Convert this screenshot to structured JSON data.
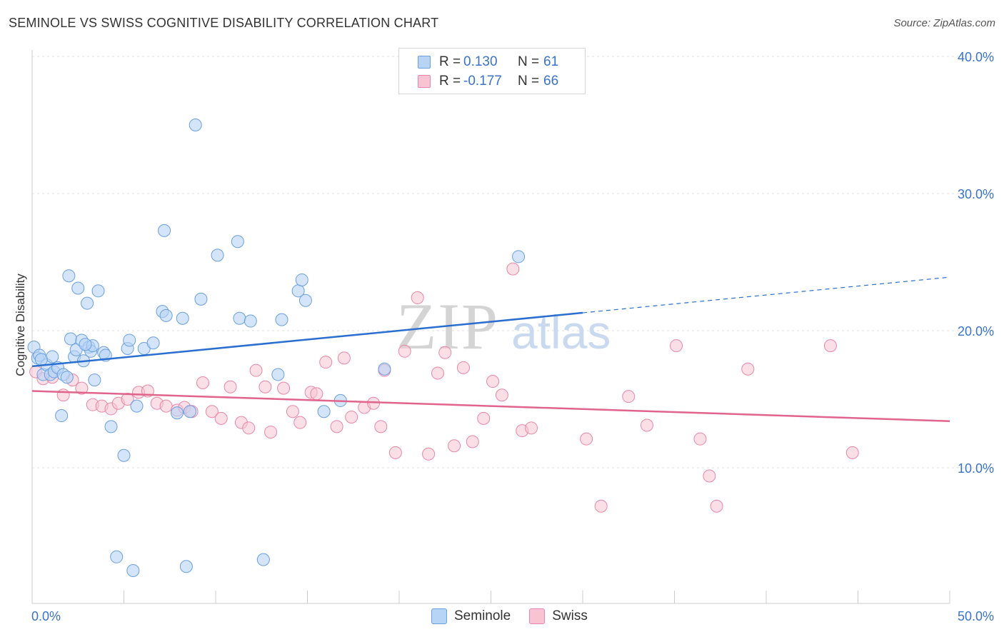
{
  "header": {
    "title": "SEMINOLE VS SWISS COGNITIVE DISABILITY CORRELATION CHART",
    "source": "Source: ZipAtlas.com"
  },
  "legend": {
    "seminole": {
      "r_label": "R =",
      "r_value": "0.130",
      "n_label": "N =",
      "n_value": "61"
    },
    "swiss": {
      "r_label": "R =",
      "r_value": "-0.177",
      "n_label": "N =",
      "n_value": "66"
    }
  },
  "bottom_legend": {
    "seminole": "Seminole",
    "swiss": "Swiss"
  },
  "watermark": {
    "zip": "ZIP",
    "atlas": "atlas"
  },
  "colors": {
    "seminole_fill": "#b8d4f5",
    "seminole_stroke": "#6a9fe0",
    "seminole_line": "#2a6fd0",
    "swiss_fill": "#f8c4d4",
    "swiss_stroke": "#e887a8",
    "swiss_line": "#e0648c",
    "axis_text": "#3a73c9",
    "grid": "#dddddd"
  },
  "chart_data": {
    "type": "scatter",
    "title": "SEMINOLE VS SWISS COGNITIVE DISABILITY CORRELATION CHART",
    "xlabel": "",
    "ylabel": "Cognitive Disability",
    "xlim": [
      0,
      50
    ],
    "ylim": [
      0,
      41
    ],
    "x_tick_labels": [
      "0.0%",
      "50.0%"
    ],
    "y_ticks": [
      10,
      20,
      30,
      40
    ],
    "y_tick_labels": [
      "10.0%",
      "20.0%",
      "30.0%",
      "40.0%"
    ],
    "grid": true,
    "legend_position": "top-center",
    "series": [
      {
        "name": "Seminole",
        "r": 0.13,
        "n": 61,
        "trend": {
          "x0": 0,
          "y0": 17.4,
          "x1": 30,
          "y1": 21.3,
          "dashed_to_x": 50,
          "dashed_to_y": 23.9
        },
        "points": [
          [
            0.1,
            18.8
          ],
          [
            0.3,
            18.0
          ],
          [
            0.4,
            18.2
          ],
          [
            0.6,
            16.8
          ],
          [
            0.8,
            17.5
          ],
          [
            1.0,
            16.8
          ],
          [
            1.2,
            17.0
          ],
          [
            1.4,
            17.3
          ],
          [
            1.7,
            16.8
          ],
          [
            1.9,
            16.6
          ],
          [
            1.6,
            13.8
          ],
          [
            2.0,
            24.0
          ],
          [
            2.1,
            19.4
          ],
          [
            2.3,
            18.1
          ],
          [
            2.4,
            18.6
          ],
          [
            2.5,
            23.1
          ],
          [
            2.7,
            19.3
          ],
          [
            2.8,
            17.8
          ],
          [
            3.0,
            22.0
          ],
          [
            3.1,
            18.8
          ],
          [
            3.2,
            18.5
          ],
          [
            3.3,
            18.9
          ],
          [
            3.4,
            16.4
          ],
          [
            3.6,
            22.9
          ],
          [
            3.9,
            18.4
          ],
          [
            4.0,
            18.2
          ],
          [
            4.3,
            13.0
          ],
          [
            4.6,
            3.5
          ],
          [
            5.0,
            10.9
          ],
          [
            5.2,
            18.7
          ],
          [
            5.3,
            19.3
          ],
          [
            5.5,
            2.5
          ],
          [
            5.7,
            14.5
          ],
          [
            6.1,
            18.7
          ],
          [
            6.6,
            19.1
          ],
          [
            7.1,
            21.4
          ],
          [
            7.2,
            27.3
          ],
          [
            7.3,
            21.1
          ],
          [
            7.9,
            14.0
          ],
          [
            8.2,
            20.9
          ],
          [
            8.4,
            2.8
          ],
          [
            8.6,
            14.1
          ],
          [
            8.9,
            35.0
          ],
          [
            9.2,
            22.3
          ],
          [
            10.1,
            25.5
          ],
          [
            11.2,
            26.5
          ],
          [
            11.3,
            20.9
          ],
          [
            11.9,
            20.7
          ],
          [
            12.6,
            3.3
          ],
          [
            13.4,
            16.8
          ],
          [
            13.6,
            20.8
          ],
          [
            14.5,
            22.9
          ],
          [
            14.7,
            23.7
          ],
          [
            14.9,
            22.2
          ],
          [
            15.9,
            14.1
          ],
          [
            16.8,
            14.9
          ],
          [
            19.2,
            17.2
          ],
          [
            26.5,
            25.4
          ],
          [
            1.1,
            18.1
          ],
          [
            0.5,
            17.9
          ],
          [
            2.9,
            19.0
          ]
        ]
      },
      {
        "name": "Swiss",
        "r": -0.177,
        "n": 66,
        "trend": {
          "x0": 0,
          "y0": 15.6,
          "x1": 50,
          "y1": 13.4
        },
        "points": [
          [
            0.2,
            17.0
          ],
          [
            0.6,
            16.5
          ],
          [
            1.1,
            16.6
          ],
          [
            1.7,
            15.3
          ],
          [
            2.2,
            16.4
          ],
          [
            2.7,
            15.8
          ],
          [
            3.3,
            14.6
          ],
          [
            3.8,
            14.5
          ],
          [
            4.3,
            14.3
          ],
          [
            4.7,
            14.7
          ],
          [
            5.2,
            15.0
          ],
          [
            5.8,
            15.5
          ],
          [
            6.3,
            15.6
          ],
          [
            6.8,
            14.7
          ],
          [
            7.3,
            14.5
          ],
          [
            7.9,
            14.2
          ],
          [
            8.3,
            14.4
          ],
          [
            8.7,
            14.1
          ],
          [
            9.3,
            16.2
          ],
          [
            9.8,
            14.1
          ],
          [
            10.3,
            13.6
          ],
          [
            10.8,
            15.9
          ],
          [
            11.4,
            13.3
          ],
          [
            11.8,
            12.9
          ],
          [
            12.2,
            17.1
          ],
          [
            12.7,
            15.9
          ],
          [
            13.0,
            12.6
          ],
          [
            13.7,
            15.8
          ],
          [
            14.2,
            14.1
          ],
          [
            14.6,
            13.3
          ],
          [
            15.2,
            15.5
          ],
          [
            15.5,
            15.4
          ],
          [
            16.0,
            17.7
          ],
          [
            16.6,
            13.0
          ],
          [
            17.0,
            18.0
          ],
          [
            17.4,
            13.7
          ],
          [
            18.1,
            14.4
          ],
          [
            18.6,
            14.7
          ],
          [
            19.0,
            13.0
          ],
          [
            19.2,
            17.1
          ],
          [
            19.8,
            11.1
          ],
          [
            20.3,
            18.5
          ],
          [
            21.0,
            22.4
          ],
          [
            21.6,
            11.0
          ],
          [
            22.1,
            16.9
          ],
          [
            22.5,
            18.4
          ],
          [
            23.0,
            11.6
          ],
          [
            23.5,
            17.3
          ],
          [
            24.0,
            11.9
          ],
          [
            24.6,
            13.6
          ],
          [
            25.1,
            16.3
          ],
          [
            25.6,
            15.3
          ],
          [
            26.2,
            24.5
          ],
          [
            26.7,
            12.7
          ],
          [
            27.2,
            12.9
          ],
          [
            30.2,
            12.1
          ],
          [
            31.0,
            7.2
          ],
          [
            32.5,
            15.2
          ],
          [
            33.5,
            13.1
          ],
          [
            35.1,
            18.9
          ],
          [
            36.4,
            12.1
          ],
          [
            36.9,
            9.4
          ],
          [
            37.3,
            7.2
          ],
          [
            39.0,
            17.2
          ],
          [
            43.5,
            18.9
          ],
          [
            44.7,
            11.1
          ]
        ]
      }
    ]
  }
}
